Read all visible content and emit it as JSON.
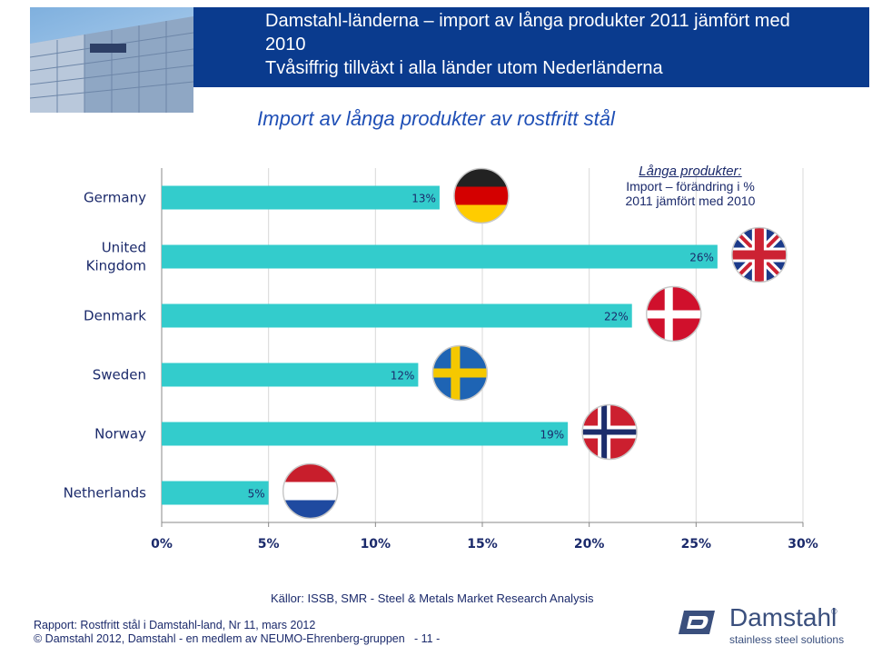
{
  "header": {
    "title_line1": "Damstahl-länderna – import av långa produkter 2011 jämfört med",
    "title_line2": "2010",
    "title_line3": "Tvåsiffrig tillväxt i alla länder utom Nederländerna",
    "band_color": "#0a3b8e"
  },
  "subtitle": "Import av långa produkter av rostfritt stål",
  "legend": {
    "title": "Långa produkter:",
    "line1": "Import – förändring i %",
    "line2": "2011 jämfört med 2010"
  },
  "chart_data": {
    "type": "bar",
    "orientation": "horizontal",
    "categories": [
      [
        "Germany"
      ],
      [
        "United",
        "Kingdom"
      ],
      [
        "Denmark"
      ],
      [
        "Sweden"
      ],
      [
        "Norway"
      ],
      [
        "Netherlands"
      ]
    ],
    "values": [
      13,
      26,
      22,
      12,
      19,
      5
    ],
    "value_labels": [
      "13%",
      "26%",
      "22%",
      "12%",
      "19%",
      "5%"
    ],
    "xlim": [
      0,
      30
    ],
    "xticks": [
      0,
      5,
      10,
      15,
      20,
      25,
      30
    ],
    "xtick_labels": [
      "0%",
      "5%",
      "10%",
      "15%",
      "20%",
      "25%",
      "30%"
    ],
    "grid": true,
    "bar_color": "#33cccc",
    "flag_icons": [
      "germany-flag-icon",
      "uk-flag-icon",
      "denmark-flag-icon",
      "sweden-flag-icon",
      "norway-flag-icon",
      "netherlands-flag-icon"
    ]
  },
  "source": "Källor: ISSB, SMR - Steel & Metals Market Research Analysis",
  "footer": {
    "report": "Rapport: Rostfritt stål i Damstahl-land, Nr 11, mars 2012",
    "copyright": "© Damstahl 2012, Damstahl - en medlem av NEUMO-Ehrenberg-gruppen",
    "page": "- 11 -"
  },
  "logo": {
    "name": "Damstahl",
    "tagline": "stainless steel solutions",
    "reg": "®",
    "icon": "damstahl-logo-icon"
  }
}
